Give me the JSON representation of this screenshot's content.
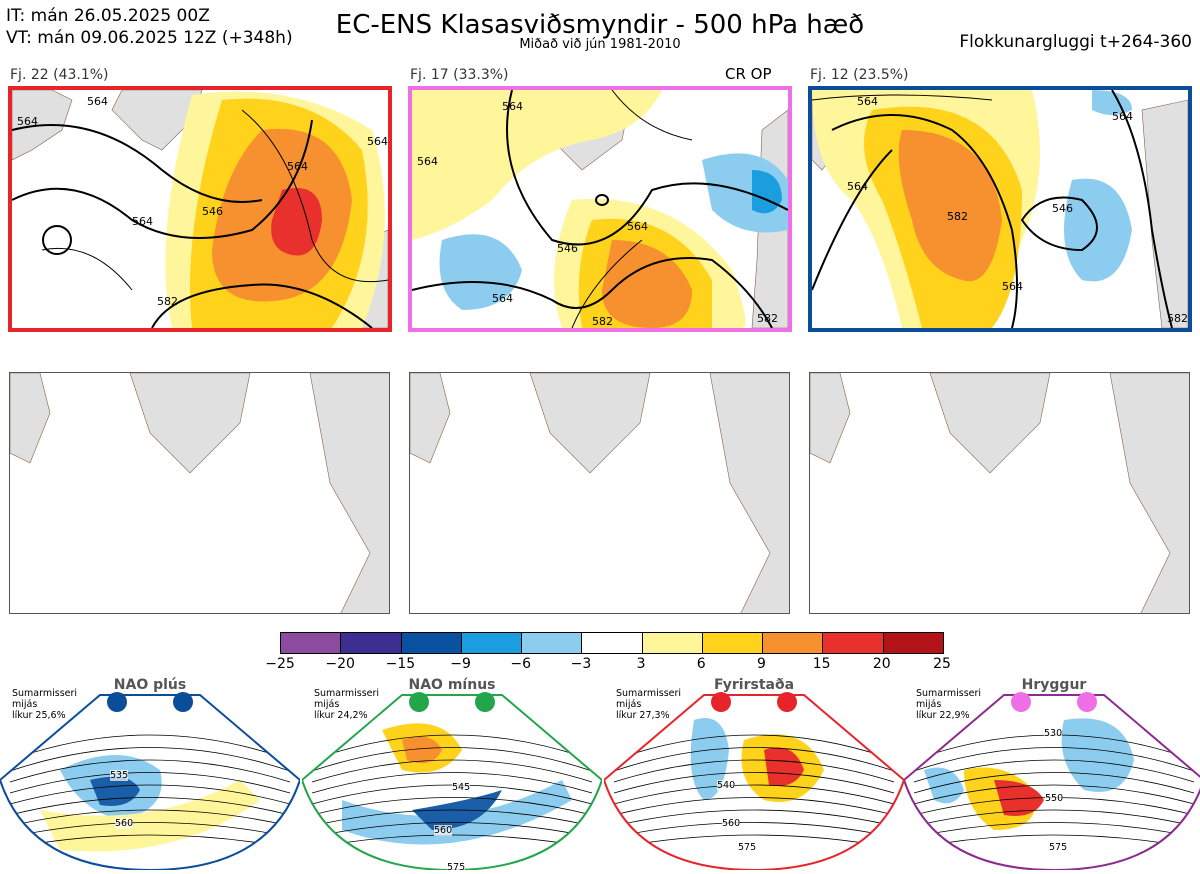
{
  "header": {
    "it": "IT: mán 26.05.2025 00Z",
    "vt": "VT: mán 09.06.2025 12Z  (+348h)",
    "title": "EC-ENS Klasasviðsmyndir - 500 hPa hæð",
    "subtitle": "Miðað við jún 1981-2010",
    "window": "Flokkunargluggi t+264-360"
  },
  "clusters": [
    {
      "label": "Fj. 22 (43.1%)",
      "border_color": "#e8242b",
      "contour_labels": [
        "564",
        "546",
        "564",
        "564",
        "582",
        "564",
        "564"
      ]
    },
    {
      "label": "Fj. 17 (33.3%)",
      "border_color": "#ee6fe6",
      "tag": "CR OP",
      "contour_labels": [
        "564",
        "546",
        "564",
        "564",
        "582",
        "564",
        "582"
      ]
    },
    {
      "label": "Fj. 12 (23.5%)",
      "border_color": "#0c4d99",
      "contour_labels": [
        "564",
        "564",
        "582",
        "546",
        "564",
        "564",
        "582"
      ]
    }
  ],
  "colorbar": {
    "ticks": [
      "−25",
      "−20",
      "−15",
      "−9",
      "−6",
      "−3",
      "3",
      "6",
      "9",
      "15",
      "20",
      "25"
    ],
    "colors": [
      "#8b4b9e",
      "#3d2f91",
      "#0a52a0",
      "#1a9ee0",
      "#8ccdef",
      "#ffffff",
      "#fff59b",
      "#ffd21c",
      "#f7902e",
      "#e8302d",
      "#b31217"
    ]
  },
  "regimes": [
    {
      "name": "NAO plús",
      "line1": "Sumarmisseri",
      "line2": "mijás",
      "line3": "líkur 25,6%",
      "border_color": "#0c4d99",
      "dot_color": "#0c4d99",
      "labels": [
        "535",
        "560"
      ]
    },
    {
      "name": "NAO mínus",
      "line1": "Sumarmisseri",
      "line2": "mijás",
      "line3": "líkur 24,2%",
      "border_color": "#23a64b",
      "dot_color": "#23a64b",
      "labels": [
        "545",
        "560",
        "575"
      ]
    },
    {
      "name": "Fyrirstaða",
      "line1": "Sumarmisseri",
      "line2": "mijás",
      "line3": "líkur 27,3%",
      "border_color": "#e8242b",
      "dot_color": "#e8242b",
      "labels": [
        "540",
        "560",
        "575"
      ]
    },
    {
      "name": "Hryggur",
      "line1": "Sumarmisseri",
      "line2": "mijás",
      "line3": "líkur 22,9%",
      "border_color": "#8b2b8e",
      "dot_color": "#ee6fe6",
      "labels": [
        "530",
        "550",
        "575"
      ]
    }
  ]
}
